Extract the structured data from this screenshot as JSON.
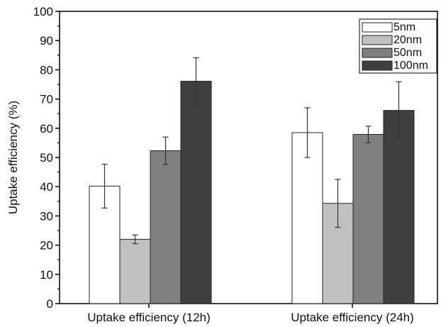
{
  "chart_data": {
    "type": "bar",
    "categories": [
      "Uptake efficiency (12h)",
      "Uptake efficiency (24h)"
    ],
    "ylabel": "Uptake efficiency (%)",
    "xlabel": "",
    "ylim": [
      0,
      100
    ],
    "yticks": [
      0,
      10,
      20,
      30,
      40,
      50,
      60,
      70,
      80,
      90,
      100
    ],
    "grid": false,
    "legend": "top-right",
    "series": [
      {
        "name": "5nm",
        "color": "#ffffff",
        "values": [
          40.2,
          58.5
        ],
        "errors": [
          7.5,
          8.5
        ]
      },
      {
        "name": "20nm",
        "color": "#c0c0c0",
        "values": [
          22.0,
          34.3
        ],
        "errors": [
          1.5,
          8.2
        ]
      },
      {
        "name": "50nm",
        "color": "#808080",
        "values": [
          52.3,
          57.9
        ],
        "errors": [
          4.7,
          2.8
        ]
      },
      {
        "name": "100nm",
        "color": "#404040",
        "values": [
          76.1,
          66.1
        ],
        "errors": [
          8.0,
          9.8
        ]
      }
    ]
  }
}
